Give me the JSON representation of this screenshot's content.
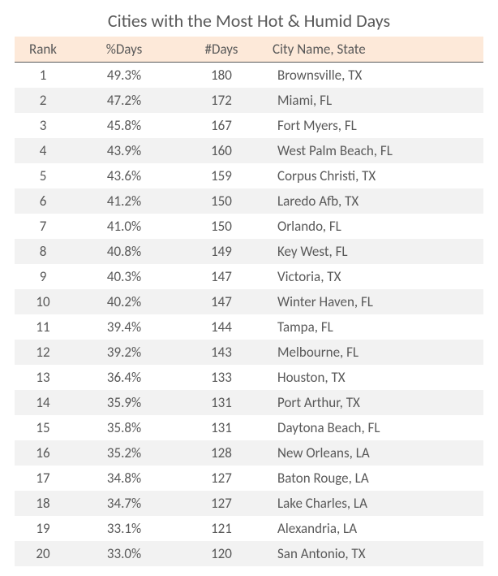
{
  "title": "Cities with the Most Hot & Humid Days",
  "table": {
    "type": "table",
    "background_color": "#ffffff",
    "alt_row_color": "#f2f2f2",
    "header_bg_color": "#fde9d9",
    "header_border_color": "#595959",
    "text_color": "#595959",
    "title_fontsize": 22,
    "header_fontsize": 17,
    "cell_fontsize": 17,
    "columns": [
      {
        "key": "rank",
        "label": "Rank",
        "align": "center"
      },
      {
        "key": "pct",
        "label": "%Days",
        "align": "center"
      },
      {
        "key": "days",
        "label": "#Days",
        "align": "center"
      },
      {
        "key": "city",
        "label": "City Name, State",
        "align": "left"
      }
    ],
    "rows": [
      {
        "rank": "1",
        "pct": "49.3%",
        "days": "180",
        "city": "Brownsville, TX"
      },
      {
        "rank": "2",
        "pct": "47.2%",
        "days": "172",
        "city": "Miami, FL"
      },
      {
        "rank": "3",
        "pct": "45.8%",
        "days": "167",
        "city": "Fort Myers, FL"
      },
      {
        "rank": "4",
        "pct": "43.9%",
        "days": "160",
        "city": "West Palm Beach, FL"
      },
      {
        "rank": "5",
        "pct": "43.6%",
        "days": "159",
        "city": "Corpus Christi, TX"
      },
      {
        "rank": "6",
        "pct": "41.2%",
        "days": "150",
        "city": "Laredo Afb, TX"
      },
      {
        "rank": "7",
        "pct": "41.0%",
        "days": "150",
        "city": "Orlando, FL"
      },
      {
        "rank": "8",
        "pct": "40.8%",
        "days": "149",
        "city": "Key West, FL"
      },
      {
        "rank": "9",
        "pct": "40.3%",
        "days": "147",
        "city": "Victoria, TX"
      },
      {
        "rank": "10",
        "pct": "40.2%",
        "days": "147",
        "city": "Winter Haven, FL"
      },
      {
        "rank": "11",
        "pct": "39.4%",
        "days": "144",
        "city": "Tampa, FL"
      },
      {
        "rank": "12",
        "pct": "39.2%",
        "days": "143",
        "city": "Melbourne, FL"
      },
      {
        "rank": "13",
        "pct": "36.4%",
        "days": "133",
        "city": "Houston, TX"
      },
      {
        "rank": "14",
        "pct": "35.9%",
        "days": "131",
        "city": "Port Arthur, TX"
      },
      {
        "rank": "15",
        "pct": "35.8%",
        "days": "131",
        "city": "Daytona Beach, FL"
      },
      {
        "rank": "16",
        "pct": "35.2%",
        "days": "128",
        "city": "New Orleans, LA"
      },
      {
        "rank": "17",
        "pct": "34.8%",
        "days": "127",
        "city": "Baton Rouge, LA"
      },
      {
        "rank": "18",
        "pct": "34.7%",
        "days": "127",
        "city": "Lake Charles, LA"
      },
      {
        "rank": "19",
        "pct": "33.1%",
        "days": "121",
        "city": "Alexandria, LA"
      },
      {
        "rank": "20",
        "pct": "33.0%",
        "days": "120",
        "city": "San Antonio, TX"
      }
    ]
  }
}
